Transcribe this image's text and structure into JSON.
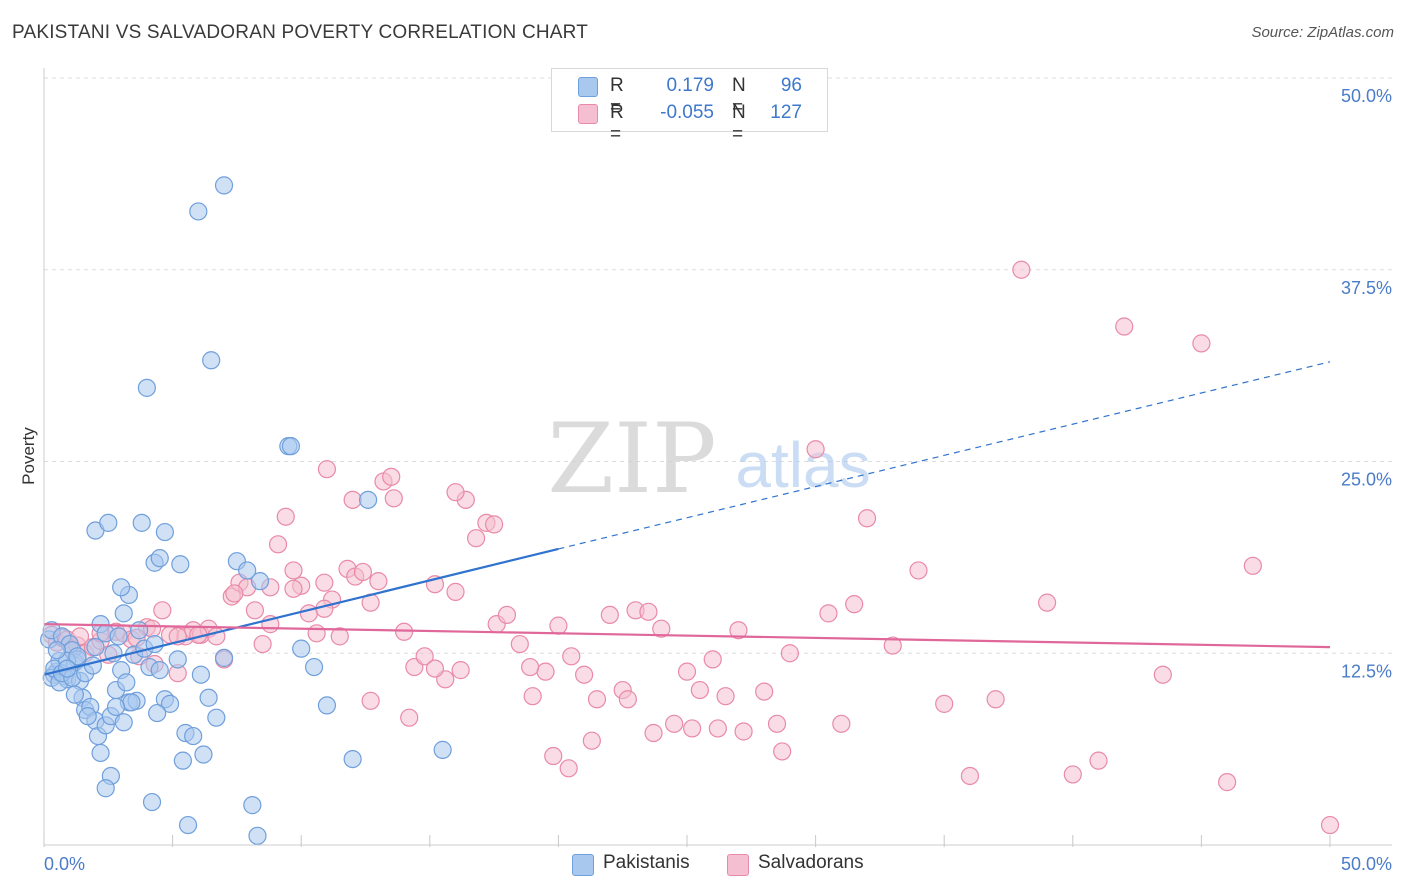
{
  "title": "PAKISTANI VS SALVADORAN POVERTY CORRELATION CHART",
  "source": "Source: ZipAtlas.com",
  "watermark": {
    "zip": "ZIP",
    "atlas": "atlas"
  },
  "colors": {
    "blue": "#6f9fdc",
    "blue_fill": "#a9c8ee",
    "blue_line": "#2f73cf",
    "pink": "#e98aa8",
    "pink_fill": "#f4bfd0",
    "pink_line": "#e0679a",
    "tick_label": "#4a7cc9",
    "grid": "#dddddd"
  },
  "legend": {
    "rows": [
      {
        "r_label": "R =",
        "r_value": "0.179",
        "n_label": "N =",
        "n_value": "96",
        "color": "#a9c8ee",
        "border": "#6f9fdc"
      },
      {
        "r_label": "R =",
        "r_value": "-0.055",
        "n_label": "N =",
        "n_value": "127",
        "color": "#f4bfd0",
        "border": "#e98aa8"
      }
    ]
  },
  "bottom_legend": [
    {
      "label": "Pakistanis",
      "color": "#a9c8ee",
      "border": "#6f9fdc"
    },
    {
      "label": "Salvadorans",
      "color": "#f4bfd0",
      "border": "#e98aa8"
    }
  ],
  "chart_data": {
    "type": "scatter",
    "title": "PAKISTANI VS SALVADORAN POVERTY CORRELATION CHART",
    "xlabel": "",
    "ylabel": "Poverty",
    "xlim": [
      0,
      50
    ],
    "ylim": [
      0,
      50
    ],
    "x_tick_labels": [
      "0.0%",
      "50.0%"
    ],
    "y_tick_labels": [
      "12.5%",
      "25.0%",
      "37.5%",
      "50.0%"
    ],
    "y_ticks": [
      12.5,
      25.0,
      37.5,
      50.0
    ],
    "grid": true,
    "series": [
      {
        "name": "Pakistanis",
        "r": 0.179,
        "n": 96,
        "trend": {
          "x0": 0,
          "y0": 11.1,
          "x1": 20,
          "y1": 19.3,
          "x_dash_end": 50,
          "y_dash_end": 31.5
        },
        "points": [
          [
            0.2,
            13.4
          ],
          [
            0.3,
            14.0
          ],
          [
            0.4,
            11.1
          ],
          [
            0.5,
            11.3
          ],
          [
            0.6,
            12.0
          ],
          [
            0.7,
            13.6
          ],
          [
            0.8,
            11.0
          ],
          [
            0.9,
            10.8
          ],
          [
            1.0,
            13.1
          ],
          [
            1.1,
            12.7
          ],
          [
            1.2,
            11.9
          ],
          [
            1.3,
            12.1
          ],
          [
            1.4,
            10.7
          ],
          [
            1.5,
            9.6
          ],
          [
            1.6,
            8.8
          ],
          [
            1.8,
            9.0
          ],
          [
            2.0,
            8.1
          ],
          [
            2.1,
            7.1
          ],
          [
            2.2,
            6.0
          ],
          [
            2.4,
            7.8
          ],
          [
            2.6,
            8.4
          ],
          [
            2.8,
            10.1
          ],
          [
            3.0,
            11.4
          ],
          [
            3.2,
            10.6
          ],
          [
            0.3,
            10.9
          ],
          [
            0.4,
            11.5
          ],
          [
            0.6,
            10.6
          ],
          [
            0.7,
            11.2
          ],
          [
            0.9,
            12.0
          ],
          [
            1.1,
            10.9
          ],
          [
            1.3,
            12.3
          ],
          [
            1.6,
            11.2
          ],
          [
            1.9,
            11.7
          ],
          [
            2.0,
            12.9
          ],
          [
            2.2,
            14.4
          ],
          [
            2.4,
            13.8
          ],
          [
            2.7,
            12.5
          ],
          [
            2.9,
            13.6
          ],
          [
            3.1,
            15.1
          ],
          [
            3.3,
            16.3
          ],
          [
            3.5,
            12.4
          ],
          [
            3.7,
            14.0
          ],
          [
            3.9,
            12.8
          ],
          [
            4.1,
            11.6
          ],
          [
            4.3,
            13.1
          ],
          [
            4.5,
            11.4
          ],
          [
            4.7,
            9.5
          ],
          [
            4.9,
            9.2
          ],
          [
            5.2,
            12.1
          ],
          [
            5.5,
            7.3
          ],
          [
            5.8,
            7.1
          ],
          [
            6.1,
            11.1
          ],
          [
            6.4,
            9.6
          ],
          [
            6.7,
            8.3
          ],
          [
            7.0,
            12.2
          ],
          [
            2.0,
            20.5
          ],
          [
            2.5,
            21.0
          ],
          [
            3.0,
            16.8
          ],
          [
            3.8,
            21.0
          ],
          [
            4.3,
            18.4
          ],
          [
            4.5,
            18.7
          ],
          [
            4.7,
            20.4
          ],
          [
            5.3,
            18.3
          ],
          [
            6.0,
            41.3
          ],
          [
            6.5,
            31.6
          ],
          [
            7.0,
            43.0
          ],
          [
            7.5,
            18.5
          ],
          [
            7.9,
            17.9
          ],
          [
            8.4,
            17.2
          ],
          [
            9.5,
            26.0
          ],
          [
            9.6,
            26.0
          ],
          [
            4.0,
            29.8
          ],
          [
            10.0,
            12.8
          ],
          [
            10.5,
            11.6
          ],
          [
            11.0,
            9.1
          ],
          [
            12.0,
            5.6
          ],
          [
            12.6,
            22.5
          ],
          [
            15.5,
            6.2
          ],
          [
            3.3,
            9.3
          ],
          [
            3.1,
            8.0
          ],
          [
            2.6,
            4.5
          ],
          [
            2.4,
            3.7
          ],
          [
            4.2,
            2.8
          ],
          [
            5.6,
            1.3
          ],
          [
            8.3,
            0.6
          ],
          [
            8.1,
            2.6
          ],
          [
            6.2,
            5.9
          ],
          [
            5.4,
            5.5
          ],
          [
            4.4,
            8.6
          ],
          [
            3.6,
            9.4
          ],
          [
            3.4,
            9.3
          ],
          [
            2.8,
            9.0
          ],
          [
            1.7,
            8.4
          ],
          [
            1.2,
            9.8
          ],
          [
            0.9,
            11.5
          ],
          [
            0.5,
            12.7
          ]
        ]
      },
      {
        "name": "Salvadorans",
        "r": -0.055,
        "n": 127,
        "trend": {
          "x0": 0,
          "y0": 14.4,
          "x1": 50,
          "y1": 12.9
        },
        "points": [
          [
            0.3,
            13.7
          ],
          [
            0.5,
            13.2
          ],
          [
            0.7,
            13.5
          ],
          [
            0.9,
            13.4
          ],
          [
            1.1,
            12.8
          ],
          [
            1.3,
            13.0
          ],
          [
            1.6,
            12.5
          ],
          [
            1.9,
            12.9
          ],
          [
            2.2,
            13.3
          ],
          [
            2.5,
            12.4
          ],
          [
            2.8,
            13.9
          ],
          [
            3.1,
            13.8
          ],
          [
            3.4,
            13.4
          ],
          [
            3.7,
            12.3
          ],
          [
            4.0,
            14.2
          ],
          [
            4.3,
            11.8
          ],
          [
            4.6,
            15.3
          ],
          [
            4.9,
            13.7
          ],
          [
            5.2,
            11.2
          ],
          [
            5.5,
            13.6
          ],
          [
            5.8,
            14.0
          ],
          [
            6.1,
            13.7
          ],
          [
            6.4,
            14.1
          ],
          [
            6.7,
            13.6
          ],
          [
            7.0,
            12.1
          ],
          [
            7.3,
            16.2
          ],
          [
            7.6,
            17.1
          ],
          [
            7.9,
            16.8
          ],
          [
            8.2,
            15.3
          ],
          [
            8.5,
            13.1
          ],
          [
            8.8,
            14.4
          ],
          [
            9.1,
            19.6
          ],
          [
            9.4,
            21.4
          ],
          [
            9.7,
            17.9
          ],
          [
            10.0,
            16.9
          ],
          [
            10.3,
            15.1
          ],
          [
            10.6,
            13.8
          ],
          [
            10.9,
            17.1
          ],
          [
            11.2,
            16.0
          ],
          [
            11.5,
            13.6
          ],
          [
            11.8,
            18.0
          ],
          [
            12.1,
            17.5
          ],
          [
            12.4,
            17.8
          ],
          [
            12.7,
            15.8
          ],
          [
            13.0,
            17.2
          ],
          [
            13.2,
            23.7
          ],
          [
            13.6,
            22.6
          ],
          [
            14.0,
            13.9
          ],
          [
            14.4,
            11.6
          ],
          [
            14.8,
            12.3
          ],
          [
            15.2,
            17.0
          ],
          [
            15.6,
            10.8
          ],
          [
            16.0,
            16.5
          ],
          [
            16.4,
            22.5
          ],
          [
            16.8,
            20.0
          ],
          [
            17.2,
            21.0
          ],
          [
            17.6,
            14.4
          ],
          [
            18.0,
            15.0
          ],
          [
            18.5,
            13.1
          ],
          [
            19.0,
            9.7
          ],
          [
            19.5,
            11.3
          ],
          [
            20.0,
            14.3
          ],
          [
            20.5,
            12.3
          ],
          [
            21.0,
            11.1
          ],
          [
            21.5,
            9.5
          ],
          [
            22.0,
            15.0
          ],
          [
            22.5,
            10.1
          ],
          [
            23.0,
            15.3
          ],
          [
            23.5,
            15.2
          ],
          [
            24.0,
            14.1
          ],
          [
            24.5,
            7.9
          ],
          [
            25.0,
            11.3
          ],
          [
            25.5,
            10.1
          ],
          [
            26.0,
            12.1
          ],
          [
            26.5,
            9.7
          ],
          [
            27.0,
            14.0
          ],
          [
            28.0,
            10.0
          ],
          [
            28.5,
            7.9
          ],
          [
            29.0,
            12.5
          ],
          [
            30.0,
            25.8
          ],
          [
            30.5,
            15.1
          ],
          [
            31.0,
            7.9
          ],
          [
            31.5,
            15.7
          ],
          [
            32.0,
            21.3
          ],
          [
            33.0,
            13.0
          ],
          [
            34.0,
            17.9
          ],
          [
            35.0,
            9.2
          ],
          [
            36.0,
            4.5
          ],
          [
            37.0,
            9.5
          ],
          [
            38.0,
            37.5
          ],
          [
            39.0,
            15.8
          ],
          [
            40.0,
            4.6
          ],
          [
            41.0,
            5.5
          ],
          [
            42.0,
            33.8
          ],
          [
            43.5,
            11.1
          ],
          [
            45.0,
            32.7
          ],
          [
            46.0,
            4.1
          ],
          [
            47.0,
            18.2
          ],
          [
            50.0,
            1.3
          ],
          [
            11.0,
            24.5
          ],
          [
            12.0,
            22.5
          ],
          [
            13.5,
            24.0
          ],
          [
            16.0,
            23.0
          ],
          [
            17.5,
            20.9
          ],
          [
            7.4,
            16.4
          ],
          [
            8.8,
            16.8
          ],
          [
            6.0,
            13.7
          ],
          [
            5.2,
            13.6
          ],
          [
            4.2,
            14.1
          ],
          [
            3.6,
            13.5
          ],
          [
            2.2,
            13.8
          ],
          [
            1.4,
            13.6
          ],
          [
            9.7,
            16.7
          ],
          [
            10.9,
            15.4
          ],
          [
            12.7,
            9.4
          ],
          [
            14.2,
            8.3
          ],
          [
            15.2,
            11.5
          ],
          [
            16.2,
            11.4
          ],
          [
            18.9,
            11.6
          ],
          [
            19.8,
            5.8
          ],
          [
            20.4,
            5.0
          ],
          [
            21.3,
            6.8
          ],
          [
            22.7,
            9.5
          ],
          [
            23.7,
            7.3
          ],
          [
            25.2,
            7.6
          ],
          [
            26.2,
            7.6
          ],
          [
            27.2,
            7.4
          ],
          [
            28.7,
            6.1
          ]
        ]
      }
    ]
  }
}
